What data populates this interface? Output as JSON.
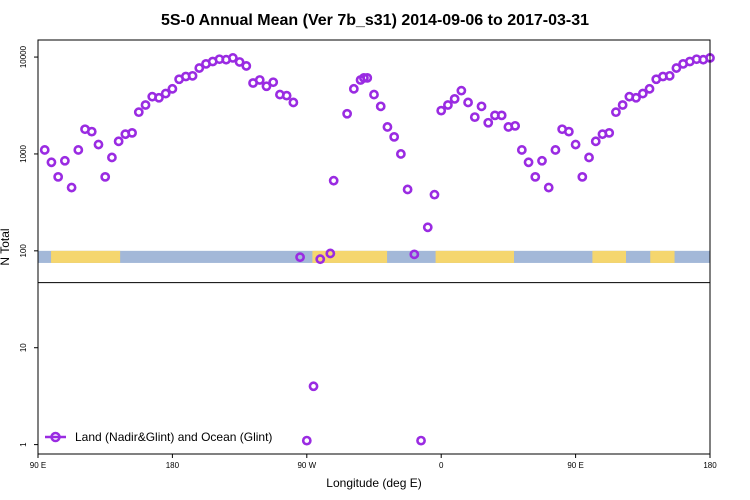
{
  "chart_data": {
    "type": "scatter",
    "title": "5S-0 Annual Mean (Ver 7b_s31)   2014-09-06 to 2017-03-31",
    "xlabel": "Longitude (deg E)",
    "ylabel": "N Total",
    "xscale": "linear",
    "yscale": "log",
    "xlim": [
      90,
      450
    ],
    "ylim": [
      0.8,
      15000
    ],
    "x_ticks": [
      {
        "value": 90,
        "label": "90 E"
      },
      {
        "value": 162,
        "label": "180"
      },
      {
        "value": 234,
        "label": "90 W"
      },
      {
        "value": 306,
        "label": "0"
      },
      {
        "value": 378,
        "label": "90 E"
      },
      {
        "value": 450,
        "label": "180"
      }
    ],
    "y_ticks": [
      {
        "value": 1,
        "label": "1"
      },
      {
        "value": 10,
        "label": "10"
      },
      {
        "value": 100,
        "label": "100"
      },
      {
        "value": 1000,
        "label": "1000"
      },
      {
        "value": 10000,
        "label": "10000"
      }
    ],
    "land_ocean_strip": {
      "band_value_low": 75,
      "band_value_high": 100,
      "ocean_color": "#a3b8d8",
      "land_color": "#f5d66e",
      "land_spans": [
        [
          97,
          134
        ],
        [
          237,
          277
        ],
        [
          303,
          345
        ],
        [
          387,
          405
        ],
        [
          418,
          431
        ]
      ]
    },
    "separator_value": 47,
    "legend": {
      "location": "bottom-left",
      "label": "Land (Nadir&Glint) and Ocean (Glint)"
    },
    "marker_color": "#9a2be2",
    "series": [
      {
        "name": "Land (Nadir&Glint) and Ocean (Glint)",
        "x": [
          93.6,
          97.2,
          100.8,
          104.4,
          108.0,
          111.6,
          115.2,
          118.8,
          122.4,
          126.0,
          129.6,
          133.2,
          136.8,
          140.4,
          144.0,
          147.6,
          151.2,
          154.8,
          158.4,
          162.0,
          165.6,
          169.2,
          172.8,
          176.4,
          180.0,
          183.6,
          187.2,
          190.8,
          194.4,
          198.0,
          201.6,
          205.2,
          208.8,
          212.4,
          216.0,
          219.6,
          223.2,
          226.8,
          230.4,
          234.0,
          237.6,
          241.2,
          246.6,
          248.4,
          255.6,
          259.2,
          262.8,
          264.6,
          266.4,
          270.0,
          273.6,
          277.2,
          280.8,
          284.4,
          288.0,
          291.6,
          295.2,
          298.8,
          302.4,
          306.0,
          309.6,
          313.2,
          316.8,
          320.4,
          324.0,
          327.6,
          331.2,
          334.8,
          338.4,
          342.0,
          345.6,
          349.2,
          352.8,
          356.4,
          360.0,
          363.6,
          367.2,
          370.8,
          374.4,
          378.0,
          381.6,
          385.2,
          388.8,
          392.4,
          396.0,
          399.6,
          403.2,
          406.8,
          410.4,
          414.0,
          417.6,
          421.2,
          424.8,
          428.4,
          432.0,
          435.6,
          439.2,
          442.8,
          446.4,
          450.0
        ],
        "y": [
          1100,
          820,
          580,
          850,
          450,
          1100,
          1800,
          1700,
          1250,
          580,
          920,
          1350,
          1600,
          1650,
          2700,
          3200,
          3900,
          3800,
          4200,
          4700,
          5900,
          6300,
          6400,
          7700,
          8500,
          9000,
          9500,
          9400,
          9800,
          8900,
          8100,
          5400,
          5800,
          5000,
          5500,
          4100,
          4000,
          3400,
          86,
          1.1,
          4.0,
          82,
          94,
          530,
          2600,
          4700,
          5800,
          6100,
          6100,
          4100,
          3100,
          1900,
          1500,
          1000,
          430,
          92,
          1.1,
          175,
          380,
          2800,
          3200,
          3700,
          4500,
          3400,
          2400,
          3100,
          2100,
          2500,
          2500,
          1900,
          1950,
          1100,
          820,
          580,
          850,
          450,
          1100,
          1800,
          1700,
          1250,
          580,
          920,
          1350,
          1600,
          1650,
          2700,
          3200,
          3900,
          3800,
          4200,
          4700,
          5900,
          6300,
          6400,
          7700,
          8500,
          9000,
          9500,
          9400,
          9800
        ]
      }
    ]
  }
}
